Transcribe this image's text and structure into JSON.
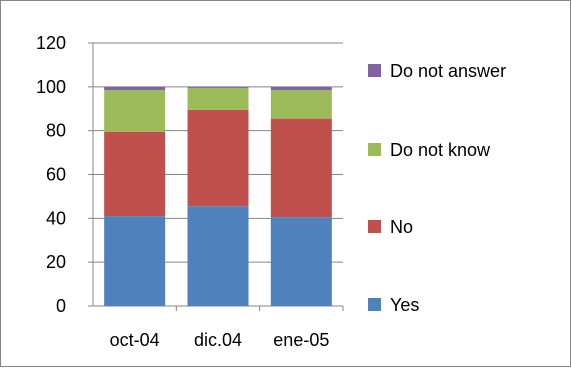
{
  "chart_data": {
    "type": "bar",
    "stacked": true,
    "title": "",
    "xlabel": "",
    "ylabel": "",
    "categories": [
      "oct-04",
      "dic.04",
      "ene-05"
    ],
    "series": [
      {
        "name": "Yes",
        "values": [
          41,
          45.5,
          40.5
        ],
        "color": "#4f81bd"
      },
      {
        "name": "No",
        "values": [
          38.5,
          44,
          45
        ],
        "color": "#c0504d"
      },
      {
        "name": "Do not know",
        "values": [
          19,
          10,
          13
        ],
        "color": "#9bbb59"
      },
      {
        "name": "Do not answer",
        "values": [
          1.5,
          0.5,
          1.5
        ],
        "color": "#8064a2"
      }
    ],
    "ylim": [
      0,
      120
    ],
    "yticks": [
      "0",
      "20",
      "40",
      "60",
      "80",
      "100",
      "120"
    ],
    "grid": true,
    "legend_position": "right"
  }
}
